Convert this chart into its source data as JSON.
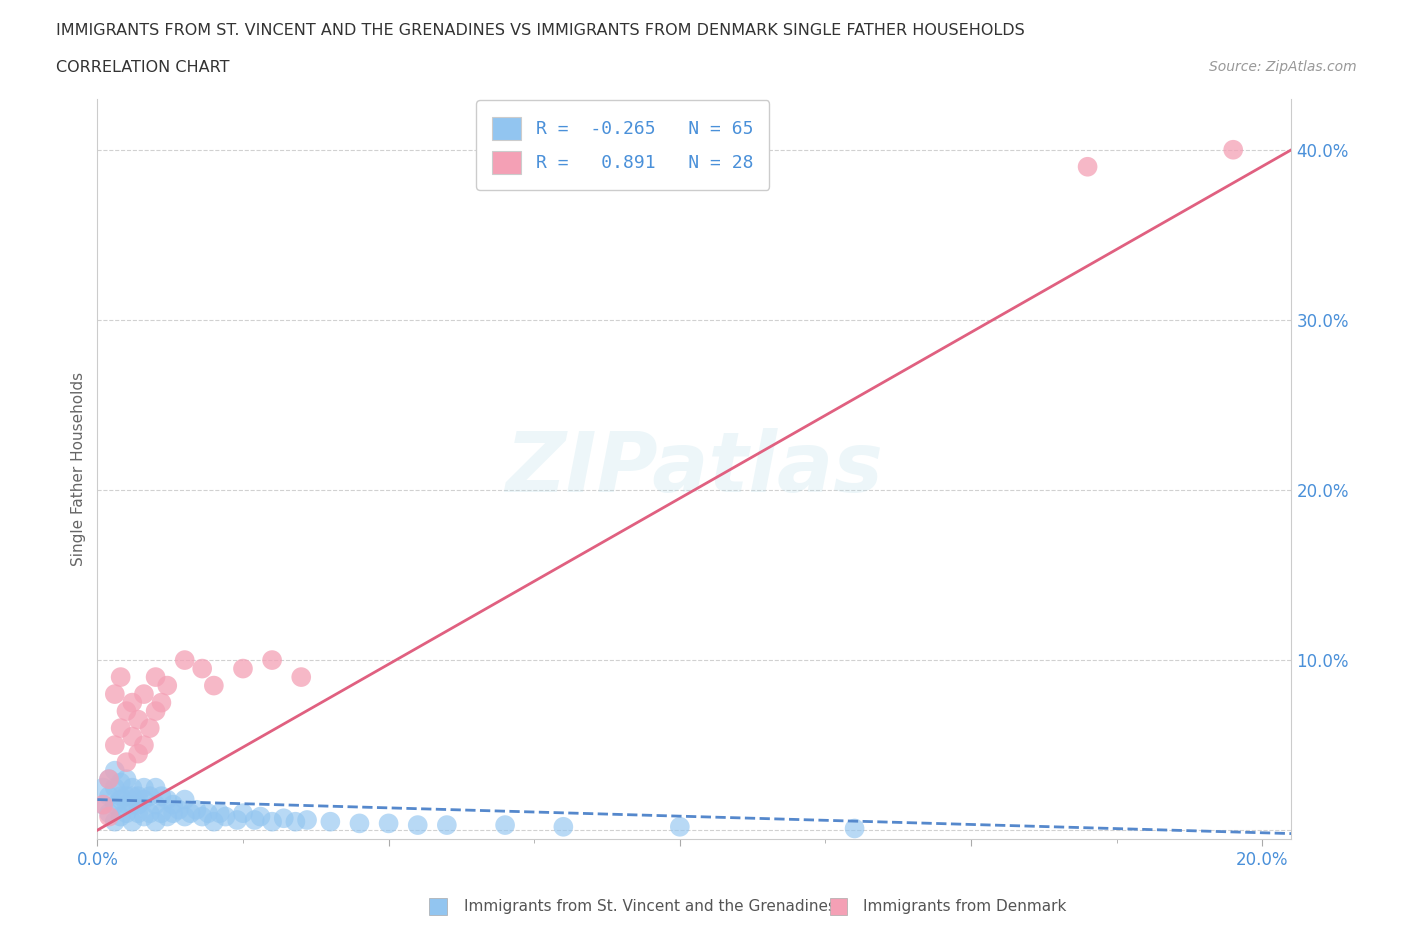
{
  "title_line1": "IMMIGRANTS FROM ST. VINCENT AND THE GRENADINES VS IMMIGRANTS FROM DENMARK SINGLE FATHER HOUSEHOLDS",
  "title_line2": "CORRELATION CHART",
  "source": "Source: ZipAtlas.com",
  "ylabel": "Single Father Households",
  "xlim": [
    0.0,
    0.205
  ],
  "ylim": [
    -0.005,
    0.43
  ],
  "blue_label": "Immigrants from St. Vincent and the Grenadines",
  "pink_label": "Immigrants from Denmark",
  "blue_color": "#92C5F0",
  "pink_color": "#F4A0B5",
  "blue_line_color": "#5588CC",
  "pink_line_color": "#E06080",
  "blue_R": -0.265,
  "blue_N": 65,
  "pink_R": 0.891,
  "pink_N": 28,
  "watermark": "ZIPatlas",
  "background_color": "#ffffff",
  "blue_scatter_x": [
    0.001,
    0.001,
    0.002,
    0.002,
    0.002,
    0.003,
    0.003,
    0.003,
    0.003,
    0.004,
    0.004,
    0.004,
    0.004,
    0.005,
    0.005,
    0.005,
    0.005,
    0.006,
    0.006,
    0.006,
    0.006,
    0.007,
    0.007,
    0.007,
    0.008,
    0.008,
    0.008,
    0.009,
    0.009,
    0.01,
    0.01,
    0.01,
    0.011,
    0.011,
    0.012,
    0.012,
    0.013,
    0.013,
    0.014,
    0.015,
    0.015,
    0.016,
    0.017,
    0.018,
    0.019,
    0.02,
    0.021,
    0.022,
    0.024,
    0.025,
    0.027,
    0.028,
    0.03,
    0.032,
    0.034,
    0.036,
    0.04,
    0.045,
    0.05,
    0.055,
    0.06,
    0.07,
    0.08,
    0.1,
    0.13
  ],
  "blue_scatter_y": [
    0.015,
    0.025,
    0.01,
    0.02,
    0.03,
    0.005,
    0.015,
    0.025,
    0.035,
    0.008,
    0.018,
    0.028,
    0.02,
    0.01,
    0.02,
    0.03,
    0.015,
    0.005,
    0.015,
    0.025,
    0.02,
    0.01,
    0.02,
    0.015,
    0.008,
    0.018,
    0.025,
    0.01,
    0.02,
    0.005,
    0.015,
    0.025,
    0.01,
    0.02,
    0.008,
    0.018,
    0.01,
    0.015,
    0.012,
    0.008,
    0.018,
    0.01,
    0.012,
    0.008,
    0.01,
    0.005,
    0.01,
    0.008,
    0.006,
    0.01,
    0.006,
    0.008,
    0.005,
    0.007,
    0.005,
    0.006,
    0.005,
    0.004,
    0.004,
    0.003,
    0.003,
    0.003,
    0.002,
    0.002,
    0.001
  ],
  "pink_scatter_x": [
    0.001,
    0.002,
    0.002,
    0.003,
    0.003,
    0.004,
    0.004,
    0.005,
    0.005,
    0.006,
    0.006,
    0.007,
    0.007,
    0.008,
    0.008,
    0.009,
    0.01,
    0.01,
    0.011,
    0.012,
    0.015,
    0.018,
    0.02,
    0.025,
    0.03,
    0.035,
    0.17,
    0.195
  ],
  "pink_scatter_y": [
    0.015,
    0.008,
    0.03,
    0.05,
    0.08,
    0.06,
    0.09,
    0.07,
    0.04,
    0.055,
    0.075,
    0.045,
    0.065,
    0.05,
    0.08,
    0.06,
    0.07,
    0.09,
    0.075,
    0.085,
    0.1,
    0.095,
    0.085,
    0.095,
    0.1,
    0.09,
    0.39,
    0.4
  ],
  "blue_trend_x0": 0.0,
  "blue_trend_y0": 0.018,
  "blue_trend_x1": 0.205,
  "blue_trend_y1": -0.002,
  "pink_trend_x0": 0.0,
  "pink_trend_y0": 0.0,
  "pink_trend_x1": 0.205,
  "pink_trend_y1": 0.4
}
